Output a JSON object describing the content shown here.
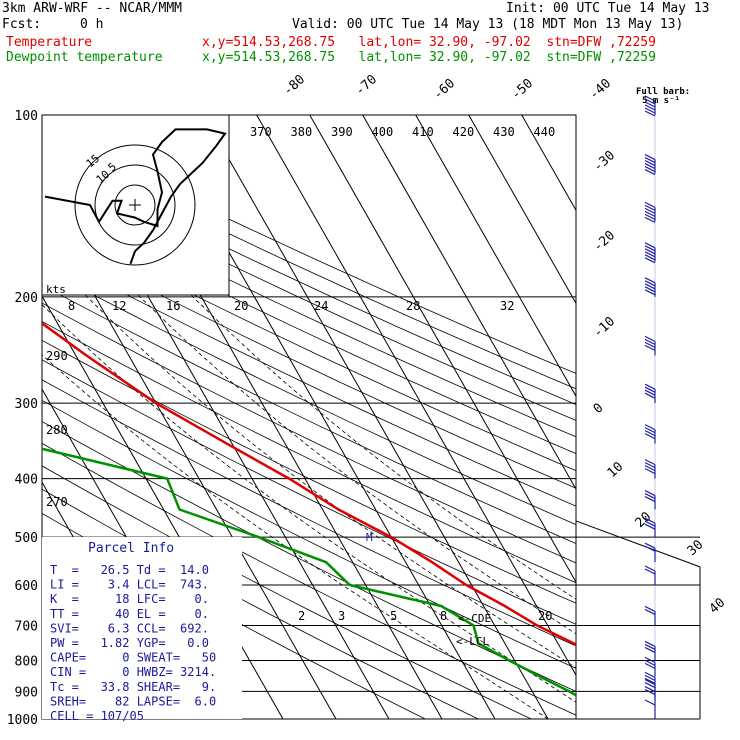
{
  "header": {
    "title": "3km ARW-WRF -- NCAR/MMM",
    "init": "Init: 00 UTC Tue 14 May 13",
    "fcst_label": "Fcst:",
    "fcst_value": "0 h",
    "valid": "Valid: 00 UTC Tue 14 May 13 (18 MDT Mon 13 May 13)",
    "temperature_label": "Temperature",
    "temperature_loc": "x,y=514.53,268.75   lat,lon= 32.90, -97.02  stn=DFW ,72259",
    "dewpoint_label": "Dewpoint temperature",
    "dewpoint_loc": "x,y=514.53,268.75   lat,lon= 32.90, -97.02  stn=DFW ,72259"
  },
  "colors": {
    "temperature": "#e00000",
    "dewpoint": "#009000",
    "barbs": "#2020a0",
    "text_blue": "#1a1a9c"
  },
  "barb_legend": {
    "line1": "Full barb:",
    "line2": "5 m s⁻¹"
  },
  "hodograph": {
    "ring_labels": [
      "5",
      "10",
      "15"
    ],
    "units": "kts"
  },
  "parcel_info": {
    "title": "Parcel Info",
    "rows": [
      "T  =   26.5 Td =  14.0",
      "LI =    3.4 LCL=  743.",
      "K  =     18 LFC=    0.",
      "TT =     40 EL =    0.",
      "SVI=    6.3 CCL=  692.",
      "PW =   1.82 YGP=   0.0",
      "CAPE=     0 SWEAT=   50",
      "CIN =     0 HWBZ= 3214.",
      "Tc =   33.8 SHEAR=   9.",
      "SREH=    82 LAPSE=  6.0",
      "CELL = 107/05"
    ]
  },
  "annotations": {
    "m": "M",
    "cde": "<-CDE",
    "lcl": "<-LCL"
  },
  "chart_data": {
    "type": "line",
    "title": "",
    "ylabel": "",
    "xlabel": "",
    "pressure_levels": [
      "100",
      "200",
      "300",
      "400",
      "500",
      "600",
      "700",
      "800",
      "900",
      "1000"
    ],
    "temperature_ticks": [
      "-80",
      "-70",
      "-60",
      "-50",
      "-40",
      "-30",
      "-20",
      "-10",
      "0",
      "10",
      "20",
      "30",
      "40"
    ],
    "theta_labels": [
      "370",
      "380",
      "390",
      "400",
      "410",
      "420",
      "430",
      "440"
    ],
    "theta_left_labels": [
      "290",
      "280",
      "270"
    ],
    "mixing_ratio_labels": [
      "8",
      "12",
      "16",
      "20",
      "24",
      "28",
      "32"
    ],
    "mixing_ratio_low_labels": [
      "2",
      "3",
      "5",
      "8",
      "20"
    ],
    "series": [
      {
        "name": "Temperature",
        "points": [
          [
            100,
            -68
          ],
          [
            150,
            -64
          ],
          [
            200,
            -57
          ],
          [
            250,
            -48
          ],
          [
            300,
            -40
          ],
          [
            350,
            -31
          ],
          [
            400,
            -23
          ],
          [
            450,
            -17
          ],
          [
            500,
            -10
          ],
          [
            550,
            -5
          ],
          [
            600,
            -1
          ],
          [
            650,
            4
          ],
          [
            700,
            8
          ],
          [
            750,
            13
          ],
          [
            800,
            17
          ],
          [
            850,
            20
          ],
          [
            900,
            22
          ],
          [
            950,
            25
          ],
          [
            975,
            26
          ],
          [
            1000,
            26.5
          ]
        ]
      },
      {
        "name": "Dewpoint temperature",
        "points": [
          [
            100,
            -88
          ],
          [
            150,
            -90
          ],
          [
            200,
            -86
          ],
          [
            250,
            -80
          ],
          [
            275,
            -86
          ],
          [
            300,
            -95
          ],
          [
            350,
            -70
          ],
          [
            400,
            -46
          ],
          [
            450,
            -47
          ],
          [
            500,
            -35
          ],
          [
            550,
            -25
          ],
          [
            600,
            -23
          ],
          [
            650,
            -8
          ],
          [
            700,
            -4
          ],
          [
            750,
            -5
          ],
          [
            800,
            -1
          ],
          [
            850,
            3
          ],
          [
            900,
            7
          ],
          [
            950,
            10
          ],
          [
            1000,
            14
          ]
        ]
      }
    ],
    "wind_barbs": [
      {
        "p": 100,
        "speed": 30
      },
      {
        "p": 125,
        "speed": 30
      },
      {
        "p": 150,
        "speed": 30
      },
      {
        "p": 175,
        "speed": 30
      },
      {
        "p": 200,
        "speed": 25
      },
      {
        "p": 250,
        "speed": 20
      },
      {
        "p": 300,
        "speed": 20
      },
      {
        "p": 350,
        "speed": 20
      },
      {
        "p": 400,
        "speed": 20
      },
      {
        "p": 450,
        "speed": 15
      },
      {
        "p": 500,
        "speed": 15
      },
      {
        "p": 550,
        "speed": 10
      },
      {
        "p": 600,
        "speed": 10
      },
      {
        "p": 700,
        "speed": 10
      },
      {
        "p": 800,
        "speed": 15
      },
      {
        "p": 850,
        "speed": 15
      },
      {
        "p": 900,
        "speed": 15
      },
      {
        "p": 925,
        "speed": 10
      },
      {
        "p": 950,
        "speed": 10
      },
      {
        "p": 1000,
        "speed": 5
      }
    ],
    "hodograph_trace": [
      [
        -20,
        -2
      ],
      [
        -10,
        0
      ],
      [
        -8,
        4
      ],
      [
        -5,
        -1
      ],
      [
        -3,
        -1
      ],
      [
        -4,
        2
      ],
      [
        0,
        3
      ],
      [
        2,
        4
      ],
      [
        5,
        5
      ],
      [
        5,
        1
      ],
      [
        6,
        -3
      ],
      [
        5,
        -8
      ],
      [
        4,
        -12
      ],
      [
        6,
        -15
      ],
      [
        9,
        -18
      ],
      [
        16,
        -18
      ],
      [
        20,
        -17
      ],
      [
        18,
        -14
      ],
      [
        15,
        -10
      ],
      [
        12,
        -7
      ],
      [
        10,
        -5
      ],
      [
        8,
        -2
      ],
      [
        6,
        2
      ],
      [
        4,
        6
      ],
      [
        2,
        9
      ],
      [
        0,
        11
      ],
      [
        -1,
        14
      ]
    ]
  }
}
